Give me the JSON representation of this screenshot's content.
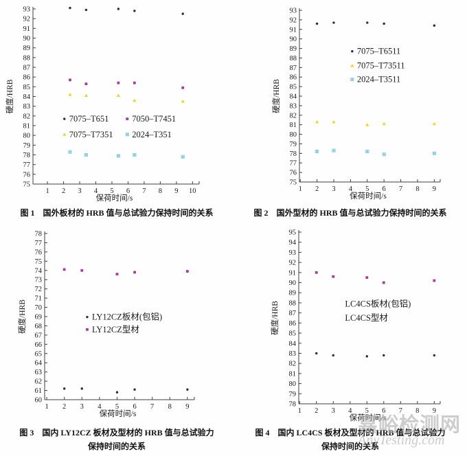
{
  "watermark": {
    "line1": "嘉峪检测网",
    "line2": "AnyTesting.com"
  },
  "chart_data": [
    {
      "type": "scatter",
      "title": "图 1　国外板材的 HRB 值与总试验力保持时间的关系",
      "caption": [
        "图 1　国外板材的 HRB 值与总试验力保持时间的关系"
      ],
      "xlabel": "保荷时间/s",
      "ylabel": "硬度/HRB",
      "xlim": [
        0.1,
        10.2
      ],
      "ylim": [
        75,
        93
      ],
      "xticks": [
        1,
        2,
        3,
        4,
        5,
        6,
        7,
        8,
        9,
        10
      ],
      "yticks": [
        75,
        76,
        77,
        78,
        79,
        80,
        81,
        82,
        83,
        84,
        85,
        86,
        87,
        88,
        89,
        90,
        91,
        92,
        93
      ],
      "grid": false,
      "legend_position": "inside-center-left",
      "box": {
        "l": 48,
        "r": 285,
        "t": 13,
        "b": 268
      },
      "ylabel_x": 18,
      "xlabel_y": 292,
      "series": [
        {
          "name": "7075–T651",
          "marker": "dot",
          "color": "#232c4e",
          "x": [
            2.4,
            3.4,
            5.4,
            6.4,
            9.4
          ],
          "y": [
            93.1,
            92.9,
            93.0,
            92.8,
            92.5
          ]
        },
        {
          "name": "7050–T7451",
          "marker": "square",
          "color": "#a63d96",
          "x": [
            2.4,
            3.4,
            5.4,
            6.4,
            9.4
          ],
          "y": [
            85.7,
            85.3,
            85.4,
            85.4,
            84.9
          ]
        },
        {
          "name": "7075–T7351",
          "marker": "triangle",
          "color": "#eed31e",
          "x": [
            2.4,
            3.4,
            5.4,
            6.4,
            9.4
          ],
          "y": [
            84.2,
            84.1,
            84.1,
            83.6,
            83.5
          ]
        },
        {
          "name": "2024–T351",
          "marker": "xsquare",
          "color": "#b8e2ec",
          "x": [
            2.4,
            3.4,
            5.4,
            6.4,
            9.4
          ],
          "y": [
            78.3,
            78.0,
            77.9,
            78.0,
            77.8
          ]
        }
      ],
      "legend": [
        {
          "marker": "dot",
          "color": "#232c4e",
          "label": "7075–T651",
          "x": 2.05,
          "y": 81.7
        },
        {
          "marker": "square",
          "color": "#a63d96",
          "label": "7050–T7451",
          "x": 5.95,
          "y": 81.7
        },
        {
          "marker": "triangle",
          "color": "#eed31e",
          "label": "7075–T7351",
          "x": 2.05,
          "y": 80.1
        },
        {
          "marker": "xsquare",
          "color": "#b8e2ec",
          "label": "2024–T351",
          "x": 5.95,
          "y": 80.1
        }
      ]
    },
    {
      "type": "scatter",
      "title": "图 2　国外型材的 HRB 值与总试验力保持时间的关系",
      "caption": [
        "图 2　国外型材的 HRB 值与总试验力保持时间的关系"
      ],
      "xlabel": "保荷时间/s",
      "ylabel": "硬度/HRB",
      "xlim": [
        0.95,
        9.15
      ],
      "ylim": [
        75,
        93
      ],
      "xticks": [
        1,
        2,
        3,
        4,
        5,
        6,
        7,
        8,
        9
      ],
      "yticks": [
        75,
        76,
        77,
        78,
        79,
        80,
        81,
        82,
        83,
        84,
        85,
        86,
        87,
        88,
        89,
        90,
        91,
        92,
        93
      ],
      "grid": false,
      "legend_position": "inside-center",
      "box": {
        "l": 96,
        "r": 296,
        "t": 15,
        "b": 265
      },
      "ylabel_x": 66,
      "xlabel_y": 289,
      "series": [
        {
          "name": "7075–T6511",
          "marker": "dot",
          "color": "#232c4e",
          "x": [
            2,
            3,
            5,
            6,
            9
          ],
          "y": [
            91.6,
            91.7,
            91.7,
            91.6,
            91.4
          ]
        },
        {
          "name": "7075–T73511",
          "marker": "triangle",
          "color": "#eed31e",
          "x": [
            2,
            3,
            5,
            6,
            9
          ],
          "y": [
            81.3,
            81.3,
            81.0,
            81.1,
            81.1
          ]
        },
        {
          "name": "2024–T3511",
          "marker": "xsquare",
          "color": "#b8e2ec",
          "x": [
            2,
            3,
            5,
            6,
            9
          ],
          "y": [
            78.2,
            78.3,
            78.2,
            77.9,
            78.0
          ]
        }
      ],
      "legend": [
        {
          "marker": "dot",
          "color": "#232c4e",
          "label": "7075–T6511",
          "x": 4.1,
          "y": 88.7
        },
        {
          "marker": "triangle",
          "color": "#eed31e",
          "label": "7075–T73511",
          "x": 4.1,
          "y": 87.2
        },
        {
          "marker": "xsquare",
          "color": "#b8e2ec",
          "label": "2024–T3511",
          "x": 4.1,
          "y": 85.75
        }
      ]
    },
    {
      "type": "scatter",
      "title": "图 3　国内 LY12CZ 板材及型材的 HRB 值与总试验力保持时间的关系",
      "caption": [
        "图 3　国内 LY12CZ 板材及型材的 HRB 值与总试验力",
        "保持时间的关系"
      ],
      "xlabel": "保荷时间/s",
      "ylabel": "硬度/HRB",
      "xlim": [
        0.88,
        9.2
      ],
      "ylim": [
        60,
        78
      ],
      "xticks": [
        1,
        2,
        3,
        4,
        5,
        6,
        7,
        8,
        9
      ],
      "yticks": [
        60,
        61,
        62,
        63,
        64,
        65,
        66,
        67,
        68,
        69,
        70,
        71,
        72,
        73,
        74,
        75,
        76,
        77,
        78
      ],
      "grid": false,
      "legend_position": "inside-center",
      "box": {
        "l": 65,
        "r": 278,
        "t": 10,
        "b": 252
      },
      "ylabel_x": 36,
      "xlabel_y": 276,
      "series": [
        {
          "name": "LY12CZ板材(包铝)",
          "marker": "dot",
          "color": "#232c4e",
          "x": [
            2,
            3,
            5,
            6,
            9
          ],
          "y": [
            61.2,
            61.2,
            60.8,
            61.1,
            61.1
          ]
        },
        {
          "name": "LY12CZ型材",
          "marker": "square",
          "color": "#a63d96",
          "x": [
            2,
            3,
            5,
            6,
            9
          ],
          "y": [
            74.1,
            74.0,
            73.6,
            73.8,
            73.9
          ]
        }
      ],
      "legend": [
        {
          "marker": "dot",
          "color": "#232c4e",
          "label": "LY12CZ板材(包铝)",
          "x": 3.3,
          "y": 68.95
        },
        {
          "marker": "square",
          "color": "#a63d96",
          "label": "LY12CZ型材",
          "x": 3.3,
          "y": 67.6
        }
      ]
    },
    {
      "type": "scatter",
      "title": "图 4　国内 LC4CS 板材及型材的 HRB 值与总试验力保持时间的关系",
      "caption": [
        "图 4　国内 LC4CS 板材及型材的 HRB 值与总试验力",
        "保持时间的关系"
      ],
      "xlabel": "保荷时间/s",
      "ylabel": "硬度/HRB",
      "xlim": [
        0.95,
        9.15
      ],
      "ylim": [
        78,
        95
      ],
      "xticks": [
        1,
        2,
        3,
        4,
        5,
        6,
        7,
        8,
        9
      ],
      "yticks": [
        78,
        79,
        80,
        81,
        82,
        83,
        84,
        85,
        86,
        87,
        88,
        89,
        90,
        91,
        92,
        93,
        94,
        95
      ],
      "grid": false,
      "legend_position": "inside-center",
      "box": {
        "l": 95,
        "r": 296,
        "t": 8,
        "b": 258
      },
      "ylabel_x": 64,
      "xlabel_y": 282,
      "series": [
        {
          "name": "LC4CS板材(包铝)",
          "marker": "dot",
          "color": "#232c4e",
          "x": [
            2,
            3,
            5,
            6,
            9
          ],
          "y": [
            83.0,
            82.8,
            82.7,
            82.8,
            82.8
          ]
        },
        {
          "name": "LC4CS型材",
          "marker": "square",
          "color": "#a63d96",
          "x": [
            2,
            3,
            5,
            6,
            9
          ],
          "y": [
            91.0,
            90.6,
            90.5,
            90.0,
            90.2
          ]
        }
      ],
      "legend": [
        {
          "marker": null,
          "color": "#1a1a1a",
          "label": "LC4CS板材(包铝)",
          "x": 3.7,
          "y": 87.9
        },
        {
          "marker": null,
          "color": "#1a1a1a",
          "label": "LC4CS型材",
          "x": 3.7,
          "y": 86.5
        }
      ]
    }
  ]
}
